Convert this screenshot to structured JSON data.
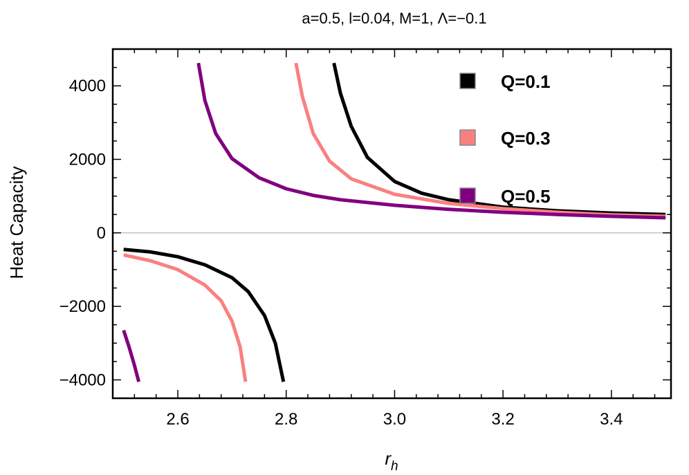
{
  "chart_data": {
    "type": "line",
    "title": "a=0.5,   l=0.04,  M=1,  Λ=−0.1",
    "xlabel": "r",
    "xlabel_sub": "h",
    "ylabel": "Heat Capacity",
    "xlim": [
      2.48,
      3.51
    ],
    "ylim": [
      -4500,
      5000
    ],
    "xticks": [
      2.6,
      2.8,
      3.0,
      3.2,
      3.4
    ],
    "xtick_labels": [
      "2.6",
      "2.8",
      "3.0",
      "3.2",
      "3.4"
    ],
    "yticks": [
      -4000,
      -2000,
      0,
      2000,
      4000
    ],
    "ytick_labels": [
      "−4000",
      "−2000",
      "0",
      "2000",
      "4000"
    ],
    "legend_position": "top-right",
    "series": [
      {
        "name": "Q=0.1",
        "color": "#000000",
        "segments": [
          [
            [
              2.5,
              -450
            ],
            [
              2.55,
              -520
            ],
            [
              2.6,
              -650
            ],
            [
              2.65,
              -870
            ],
            [
              2.7,
              -1220
            ],
            [
              2.73,
              -1600
            ],
            [
              2.76,
              -2250
            ],
            [
              2.78,
              -3000
            ],
            [
              2.795,
              -4050
            ]
          ],
          [
            [
              2.888,
              4620
            ],
            [
              2.9,
              3800
            ],
            [
              2.92,
              2900
            ],
            [
              2.95,
              2050
            ],
            [
              3.0,
              1400
            ],
            [
              3.05,
              1080
            ],
            [
              3.1,
              900
            ],
            [
              3.2,
              700
            ],
            [
              3.3,
              600
            ],
            [
              3.4,
              540
            ],
            [
              3.5,
              500
            ]
          ]
        ]
      },
      {
        "name": "Q=0.3",
        "color": "#FA8080",
        "segments": [
          [
            [
              2.5,
              -600
            ],
            [
              2.55,
              -760
            ],
            [
              2.6,
              -1000
            ],
            [
              2.65,
              -1420
            ],
            [
              2.68,
              -1850
            ],
            [
              2.7,
              -2400
            ],
            [
              2.715,
              -3100
            ],
            [
              2.725,
              -4050
            ]
          ],
          [
            [
              2.818,
              4620
            ],
            [
              2.83,
              3700
            ],
            [
              2.85,
              2700
            ],
            [
              2.88,
              1950
            ],
            [
              2.92,
              1470
            ],
            [
              3.0,
              1050
            ],
            [
              3.1,
              800
            ],
            [
              3.2,
              660
            ],
            [
              3.3,
              560
            ],
            [
              3.4,
              490
            ],
            [
              3.5,
              450
            ]
          ]
        ]
      },
      {
        "name": "Q=0.5",
        "color": "#800080",
        "segments": [
          [
            [
              2.5,
              -2650
            ],
            [
              2.51,
              -3100
            ],
            [
              2.52,
              -3600
            ],
            [
              2.528,
              -4050
            ]
          ],
          [
            [
              2.638,
              4620
            ],
            [
              2.65,
              3600
            ],
            [
              2.67,
              2700
            ],
            [
              2.7,
              2020
            ],
            [
              2.75,
              1500
            ],
            [
              2.8,
              1200
            ],
            [
              2.85,
              1020
            ],
            [
              2.9,
              900
            ],
            [
              3.0,
              750
            ],
            [
              3.1,
              640
            ],
            [
              3.2,
              560
            ],
            [
              3.3,
              500
            ],
            [
              3.4,
              450
            ],
            [
              3.5,
              410
            ]
          ]
        ]
      }
    ]
  }
}
